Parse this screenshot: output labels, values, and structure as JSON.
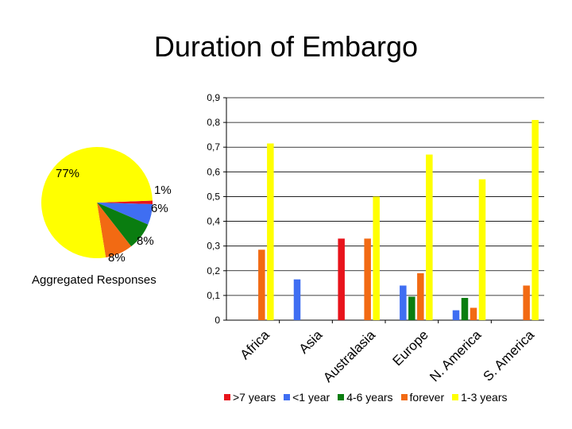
{
  "title": "Duration of Embargo",
  "pie": {
    "caption": "Aggregated Responses",
    "slices": [
      {
        "name": ">7 years",
        "value": 1,
        "label": "1%",
        "color": "#e8131b"
      },
      {
        "name": "<1 year",
        "value": 6,
        "label": "6%",
        "color": "#3f6ef2"
      },
      {
        "name": "4-6 years",
        "value": 8,
        "label": "8%",
        "color": "#0a7d10"
      },
      {
        "name": "forever",
        "value": 8,
        "label": "8%",
        "color": "#f26a13"
      },
      {
        "name": "1-3 years",
        "value": 77,
        "label": "77%",
        "color": "#ffff00"
      }
    ]
  },
  "chart_data": {
    "type": "bar",
    "title": "Duration of Embargo",
    "categories": [
      "Africa",
      "Asia",
      "Australasia",
      "Europe",
      "N. America",
      "S. America"
    ],
    "ylim": [
      0,
      0.9
    ],
    "yticks": [
      "0",
      "0,1",
      "0,2",
      "0,3",
      "0,4",
      "0,5",
      "0,6",
      "0,7",
      "0,8",
      "0,9"
    ],
    "series": [
      {
        "name": ">7 years",
        "color": "#e8131b",
        "values": [
          0,
          0,
          0.33,
          0,
          0,
          0
        ]
      },
      {
        "name": "<1 year",
        "color": "#3f6ef2",
        "values": [
          0,
          0.165,
          0,
          0.14,
          0.04,
          0
        ]
      },
      {
        "name": "4-6 years",
        "color": "#0a7d10",
        "values": [
          0,
          0,
          0,
          0.095,
          0.09,
          0
        ]
      },
      {
        "name": "forever",
        "color": "#f26a13",
        "values": [
          0.285,
          0,
          0.33,
          0.19,
          0.05,
          0.14
        ]
      },
      {
        "name": "1-3 years",
        "color": "#ffff00",
        "values": [
          0.715,
          0,
          0.5,
          0.67,
          0.57,
          0.81
        ]
      }
    ]
  }
}
